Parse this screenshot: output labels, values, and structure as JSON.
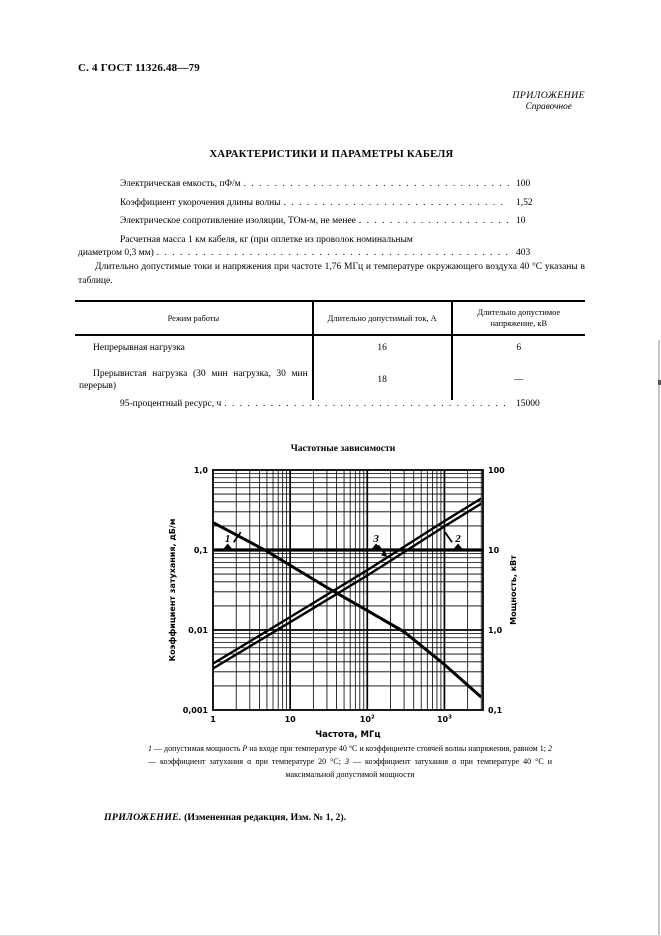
{
  "page": {
    "header": "С. 4 ГОСТ 11326.48—79",
    "annex_label": "ПРИЛОЖЕНИЕ",
    "annex_sublabel": "Справочное",
    "title": "ХАРАКТЕРИСТИКИ И ПАРАМЕТРЫ КАБЕЛЯ",
    "intro_text": "Длительно допустимые токи и напряжения при частоте 1,76 МГц и температуре окружающего воздуха 40 °С указаны в таблице.",
    "footer_label": "ПРИЛОЖЕНИЕ.",
    "footer_text": "(Измененная редакция, Изм. № 1, 2)."
  },
  "parameters": [
    {
      "label": "Электрическая емкость, пФ/м",
      "value": "100"
    },
    {
      "label": "Коэффициент укорочения длины волны",
      "value": "1,52"
    },
    {
      "label": "Электрическое сопротивление изоляции, ТОм-м, не менее",
      "value": "10"
    },
    {
      "label_line1": "Расчетная масса 1 км кабеля, кг (при оплетке из проволок номинальным",
      "label_line2": "диаметром 0,3 мм)",
      "value": "403"
    }
  ],
  "table": {
    "headers": [
      "Режим работы",
      "Длительно допустимый ток, А",
      "Длительно допустимое напряжение, кВ"
    ],
    "rows": [
      {
        "mode": "Непрерывная нагрузка",
        "current": "16",
        "voltage": "6"
      },
      {
        "mode": "Прерывистая нагрузка (30 мин нагрузка, 30 мин перерыв)",
        "current": "18",
        "voltage": "—"
      }
    ]
  },
  "resource": {
    "label": "95-процентный ресурс, ч",
    "value": "15000"
  },
  "chart_data": {
    "type": "line",
    "title": "Частотные зависимости",
    "xlabel": "Частота, МГц",
    "ylabel_left": "Коэффициент затухания, дБ/м",
    "ylabel_right": "Мощность, кВт",
    "x_log_range": [
      1,
      3162
    ],
    "y_left_log_range": [
      0.001,
      1.0
    ],
    "y_right_log_range": [
      0.1,
      100
    ],
    "x_ticks": [
      {
        "value": 1,
        "base": "1",
        "sup": ""
      },
      {
        "value": 10,
        "base": "10",
        "sup": ""
      },
      {
        "value": 100,
        "base": "10",
        "sup": "2"
      },
      {
        "value": 1000,
        "base": "10",
        "sup": "3"
      }
    ],
    "y_left_ticks": [
      {
        "value": 1,
        "label": "1,0"
      },
      {
        "value": 0.1,
        "label": "0,1"
      },
      {
        "value": 0.01,
        "label": "0,01"
      },
      {
        "value": 0.001,
        "label": "0,001"
      }
    ],
    "y_right_ticks": [
      {
        "value": 100,
        "label": "100"
      },
      {
        "value": 10,
        "label": "10"
      },
      {
        "value": 1,
        "label": "1,0"
      },
      {
        "value": 0.1,
        "label": "0,1"
      }
    ],
    "emphasized_y_left": 0.1,
    "grid": "log-log, major decade lines with minor subdivisions",
    "series": [
      {
        "name": "1",
        "axis": "right",
        "unit": "кВт",
        "description": "допустимая мощность Р на входе при температуре 40 °С и КСВН = 1",
        "points": [
          [
            1,
            22
          ],
          [
            4.7,
            10
          ],
          [
            30,
            3.4
          ],
          [
            100,
            1.75
          ],
          [
            300,
            0.95
          ],
          [
            1000,
            0.37
          ],
          [
            3000,
            0.145
          ]
        ]
      },
      {
        "name": "2",
        "axis": "left",
        "unit": "дБ/м",
        "description": "коэффициент затухания при температуре 20 °С",
        "points": [
          [
            1,
            0.0033
          ],
          [
            10,
            0.0125
          ],
          [
            100,
            0.048
          ],
          [
            1000,
            0.197
          ],
          [
            3000,
            0.38
          ]
        ]
      },
      {
        "name": "3",
        "axis": "left",
        "unit": "дБ/м",
        "description": "коэффициент затухания при температуре 40 °С и максимальной допустимой мощности",
        "points": [
          [
            1,
            0.0038
          ],
          [
            10,
            0.0145
          ],
          [
            100,
            0.056
          ],
          [
            1000,
            0.23
          ],
          [
            3000,
            0.44
          ]
        ]
      }
    ],
    "curve_labels": [
      {
        "text": "1",
        "x": 1.55,
        "y": 0.125,
        "arrow": "slash-right"
      },
      {
        "text": "3",
        "x": 130,
        "y": 0.125,
        "arrow": "down-right"
      },
      {
        "text": "2",
        "x": 1500,
        "y": 0.125,
        "arrow": "backslash-left"
      }
    ],
    "caption_parts": [
      {
        "text": "1",
        "italic": true
      },
      {
        "text": " — допустимая мощность ",
        "italic": false
      },
      {
        "text": "Р",
        "italic": true
      },
      {
        "text": " на входе при температуре 40 °С и коэффициенте стоячей волны напряжения, равном 1; ",
        "italic": false
      },
      {
        "text": "2",
        "italic": true
      },
      {
        "text": " — коэффициент затухания α при температуре 20 °С; ",
        "italic": false
      },
      {
        "text": "3",
        "italic": true
      },
      {
        "text": " — коэффициент затухания α при температуре 40 °С и максимальной допустимой мощности",
        "italic": false
      }
    ]
  }
}
